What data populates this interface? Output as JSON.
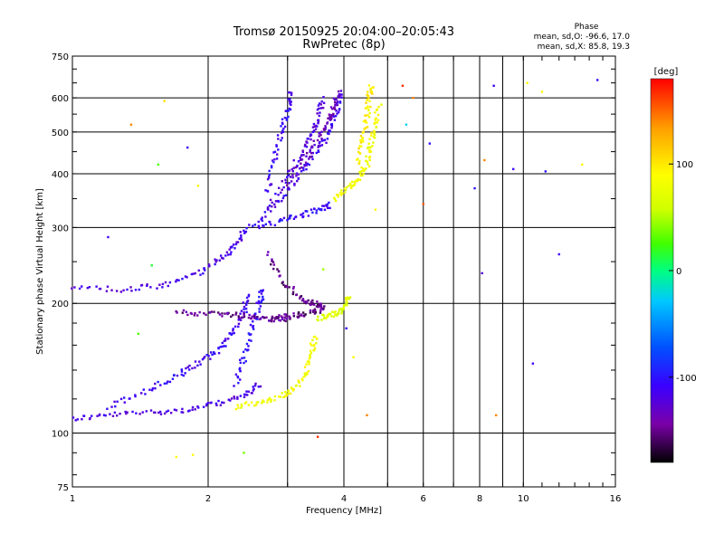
{
  "chart_data": {
    "type": "scatter",
    "title": "Tromsø 20150925 20:04:00–20:05:43",
    "subtitle": "RwPretec (8p)",
    "xlabel": "Frequency [MHz]",
    "ylabel": "Stationary phase Virtual Height [km]",
    "x_scale": "log",
    "y_scale": "log",
    "xlim": [
      1,
      16
    ],
    "ylim": [
      75,
      750
    ],
    "x_ticks": [
      1,
      2,
      4,
      6,
      8,
      10,
      16
    ],
    "x_tick_labels": [
      "1",
      "2",
      "4",
      "6",
      "8",
      "10",
      "16"
    ],
    "x_minor_ticks": [
      3,
      5,
      7,
      9
    ],
    "y_ticks": [
      75,
      100,
      200,
      300,
      400,
      500,
      600,
      750
    ],
    "y_tick_labels": [
      "75",
      "100",
      "200",
      "300",
      "400",
      "500",
      "600",
      "750"
    ],
    "grid": true,
    "phase_stats": {
      "title": "Phase",
      "line_o": "mean, sd,O: -96.6, 17.0",
      "line_x": "mean, sd,X: 85.8, 19.3"
    },
    "colorbar": {
      "label": "[deg]",
      "range": [
        -180,
        180
      ],
      "ticks": [
        100,
        0,
        -100
      ],
      "tick_labels": [
        "100",
        "0",
        "-100"
      ],
      "colors": [
        "#000000",
        "#7a00a8",
        "#3a00ff",
        "#0050ff",
        "#00c8ff",
        "#00ff80",
        "#40ff00",
        "#d0ff00",
        "#ffff00",
        "#ffa000",
        "#ff0000"
      ]
    },
    "series": [
      {
        "mode": "O",
        "phase": -120,
        "segments": [
          [
            1.0,
            108
          ],
          [
            1.2,
            110
          ],
          [
            1.5,
            112
          ],
          [
            1.8,
            113
          ],
          [
            2.1,
            117
          ],
          [
            2.4,
            122
          ],
          [
            2.6,
            130
          ]
        ]
      },
      {
        "mode": "O",
        "phase": -110,
        "segments": [
          [
            1.2,
            115
          ],
          [
            1.45,
            125
          ],
          [
            1.7,
            135
          ],
          [
            1.9,
            145
          ],
          [
            2.1,
            155
          ],
          [
            2.25,
            170
          ],
          [
            2.4,
            190
          ],
          [
            2.45,
            210
          ]
        ]
      },
      {
        "mode": "O",
        "phase": -105,
        "segments": [
          [
            2.3,
            130
          ],
          [
            2.4,
            150
          ],
          [
            2.5,
            175
          ],
          [
            2.6,
            200
          ],
          [
            2.65,
            215
          ]
        ]
      },
      {
        "mode": "O",
        "phase": -115,
        "segments": [
          [
            1.0,
            218
          ],
          [
            1.3,
            215
          ],
          [
            1.6,
            220
          ],
          [
            1.9,
            235
          ],
          [
            2.15,
            255
          ],
          [
            2.3,
            275
          ],
          [
            2.45,
            300
          ]
        ]
      },
      {
        "mode": "O",
        "phase": -145,
        "segments": [
          [
            1.7,
            190
          ],
          [
            2.0,
            190
          ],
          [
            2.3,
            188
          ],
          [
            2.55,
            186
          ],
          [
            2.8,
            184
          ],
          [
            3.0,
            183
          ]
        ]
      },
      {
        "mode": "O",
        "phase": -150,
        "segments": [
          [
            2.8,
            185
          ],
          [
            3.1,
            187
          ],
          [
            3.4,
            190
          ],
          [
            3.6,
            195
          ]
        ]
      },
      {
        "mode": "O",
        "phase": -150,
        "segments": [
          [
            2.7,
            260
          ],
          [
            2.95,
            225
          ],
          [
            3.2,
            205
          ],
          [
            3.45,
            200
          ],
          [
            3.6,
            198
          ]
        ]
      },
      {
        "mode": "O",
        "phase": -105,
        "segments": [
          [
            2.5,
            300
          ],
          [
            2.9,
            310
          ],
          [
            3.2,
            320
          ],
          [
            3.5,
            330
          ],
          [
            3.75,
            340
          ]
        ]
      },
      {
        "mode": "O",
        "phase": -112,
        "segments": [
          [
            2.6,
            310
          ],
          [
            2.9,
            350
          ],
          [
            3.2,
            400
          ],
          [
            3.5,
            450
          ],
          [
            3.7,
            500
          ],
          [
            3.85,
            560
          ],
          [
            3.95,
            620
          ]
        ]
      },
      {
        "mode": "O",
        "phase": -120,
        "segments": [
          [
            2.7,
            330
          ],
          [
            3.0,
            390
          ],
          [
            3.2,
            440
          ],
          [
            3.4,
            490
          ],
          [
            3.5,
            540
          ],
          [
            3.6,
            600
          ]
        ]
      },
      {
        "mode": "O",
        "phase": -135,
        "segments": [
          [
            3.0,
            380
          ],
          [
            3.3,
            430
          ],
          [
            3.5,
            480
          ],
          [
            3.7,
            530
          ],
          [
            3.8,
            570
          ],
          [
            3.9,
            620
          ]
        ]
      },
      {
        "mode": "O",
        "phase": -110,
        "segments": [
          [
            2.7,
            360
          ],
          [
            2.8,
            430
          ],
          [
            2.9,
            500
          ],
          [
            3.0,
            560
          ],
          [
            3.05,
            630
          ]
        ]
      },
      {
        "mode": "X",
        "phase": 100,
        "segments": [
          [
            2.3,
            115
          ],
          [
            2.6,
            118
          ],
          [
            2.9,
            122
          ],
          [
            3.1,
            127
          ],
          [
            3.3,
            138
          ],
          [
            3.4,
            155
          ],
          [
            3.45,
            170
          ]
        ]
      },
      {
        "mode": "X",
        "phase": 85,
        "segments": [
          [
            3.5,
            185
          ],
          [
            3.7,
            188
          ],
          [
            3.9,
            190
          ],
          [
            4.05,
            198
          ],
          [
            4.1,
            210
          ]
        ]
      },
      {
        "mode": "X",
        "phase": 100,
        "segments": [
          [
            3.8,
            350
          ],
          [
            4.1,
            370
          ],
          [
            4.3,
            390
          ],
          [
            4.5,
            420
          ],
          [
            4.6,
            470
          ],
          [
            4.7,
            520
          ],
          [
            4.8,
            580
          ]
        ]
      },
      {
        "mode": "X",
        "phase": 110,
        "segments": [
          [
            4.3,
            420
          ],
          [
            4.4,
            480
          ],
          [
            4.5,
            540
          ],
          [
            4.55,
            600
          ],
          [
            4.6,
            640
          ]
        ]
      }
    ],
    "scattered_points": [
      {
        "x": 1.35,
        "y": 520,
        "phase": 150
      },
      {
        "x": 1.6,
        "y": 590,
        "phase": 120
      },
      {
        "x": 5.4,
        "y": 640,
        "phase": 170
      },
      {
        "x": 5.7,
        "y": 600,
        "phase": 150
      },
      {
        "x": 5.5,
        "y": 520,
        "phase": -30
      },
      {
        "x": 6.2,
        "y": 470,
        "phase": -100
      },
      {
        "x": 8.6,
        "y": 640,
        "phase": -110
      },
      {
        "x": 10.2,
        "y": 650,
        "phase": 110
      },
      {
        "x": 14.6,
        "y": 660,
        "phase": -100
      },
      {
        "x": 11.0,
        "y": 620,
        "phase": 110
      },
      {
        "x": 8.2,
        "y": 430,
        "phase": 150
      },
      {
        "x": 9.5,
        "y": 410,
        "phase": -110
      },
      {
        "x": 11.2,
        "y": 405,
        "phase": -100
      },
      {
        "x": 13.5,
        "y": 420,
        "phase": 110
      },
      {
        "x": 7.8,
        "y": 370,
        "phase": -100
      },
      {
        "x": 12.0,
        "y": 260,
        "phase": -110
      },
      {
        "x": 6.0,
        "y": 340,
        "phase": 160
      },
      {
        "x": 4.7,
        "y": 330,
        "phase": 110
      },
      {
        "x": 8.1,
        "y": 235,
        "phase": -120
      },
      {
        "x": 1.2,
        "y": 285,
        "phase": -110
      },
      {
        "x": 1.5,
        "y": 245,
        "phase": 20
      },
      {
        "x": 1.55,
        "y": 420,
        "phase": 40
      },
      {
        "x": 1.8,
        "y": 460,
        "phase": -110
      },
      {
        "x": 1.9,
        "y": 375,
        "phase": 110
      },
      {
        "x": 3.6,
        "y": 240,
        "phase": 60
      },
      {
        "x": 4.2,
        "y": 150,
        "phase": 100
      },
      {
        "x": 8.7,
        "y": 110,
        "phase": 150
      },
      {
        "x": 1.7,
        "y": 88,
        "phase": 110
      },
      {
        "x": 1.85,
        "y": 89,
        "phase": 110
      },
      {
        "x": 2.4,
        "y": 90,
        "phase": 50
      },
      {
        "x": 1.4,
        "y": 170,
        "phase": 40
      },
      {
        "x": 4.05,
        "y": 175,
        "phase": -110
      },
      {
        "x": 10.5,
        "y": 145,
        "phase": -110
      },
      {
        "x": 4.5,
        "y": 110,
        "phase": 150
      },
      {
        "x": 3.5,
        "y": 98,
        "phase": 170
      }
    ]
  }
}
